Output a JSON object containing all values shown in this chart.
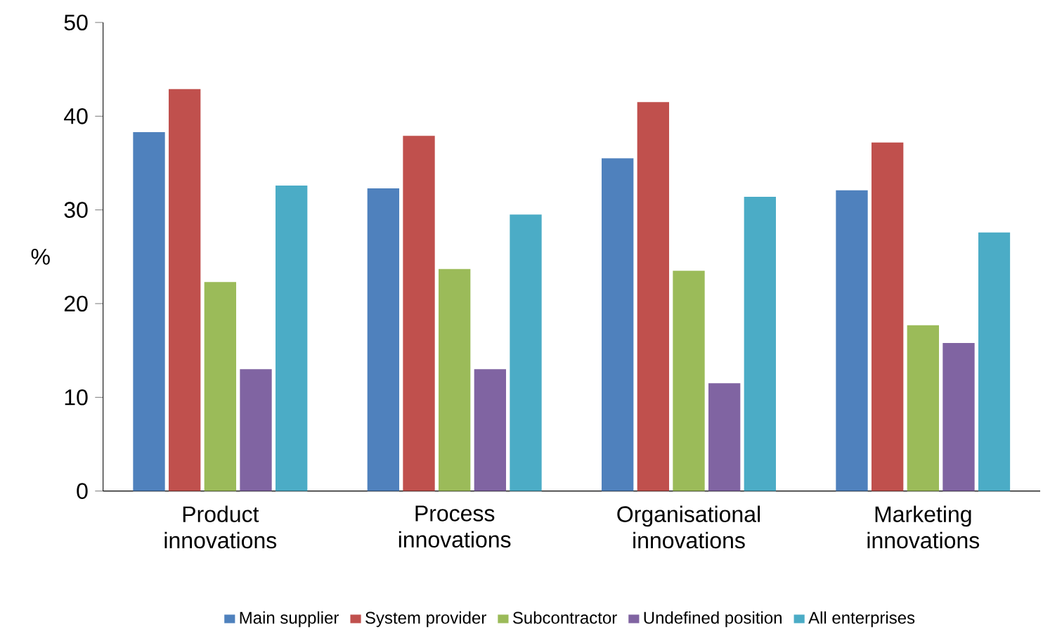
{
  "chart_data": {
    "type": "bar",
    "ylabel": "%",
    "categories": [
      "Product innovations",
      "Process innovations",
      "Organisational innovations",
      "Marketing innovations"
    ],
    "series": [
      {
        "name": "Main supplier",
        "color": "#4f81bd",
        "values": [
          38.3,
          32.3,
          35.5,
          32.1
        ]
      },
      {
        "name": "System provider",
        "color": "#c0504d",
        "values": [
          42.9,
          37.9,
          41.5,
          37.2
        ]
      },
      {
        "name": "Subcontractor",
        "color": "#9bbb59",
        "values": [
          22.3,
          23.7,
          23.5,
          17.7
        ]
      },
      {
        "name": "Undefined position",
        "color": "#8064a2",
        "values": [
          13.0,
          13.0,
          11.5,
          15.8
        ]
      },
      {
        "name": "All enterprises",
        "color": "#4bacc6",
        "values": [
          32.6,
          29.5,
          31.4,
          27.6
        ]
      }
    ],
    "ylim": [
      0,
      50
    ],
    "yticks": [
      0,
      10,
      20,
      30,
      40,
      50
    ],
    "grid": false,
    "legend": "bottom"
  }
}
